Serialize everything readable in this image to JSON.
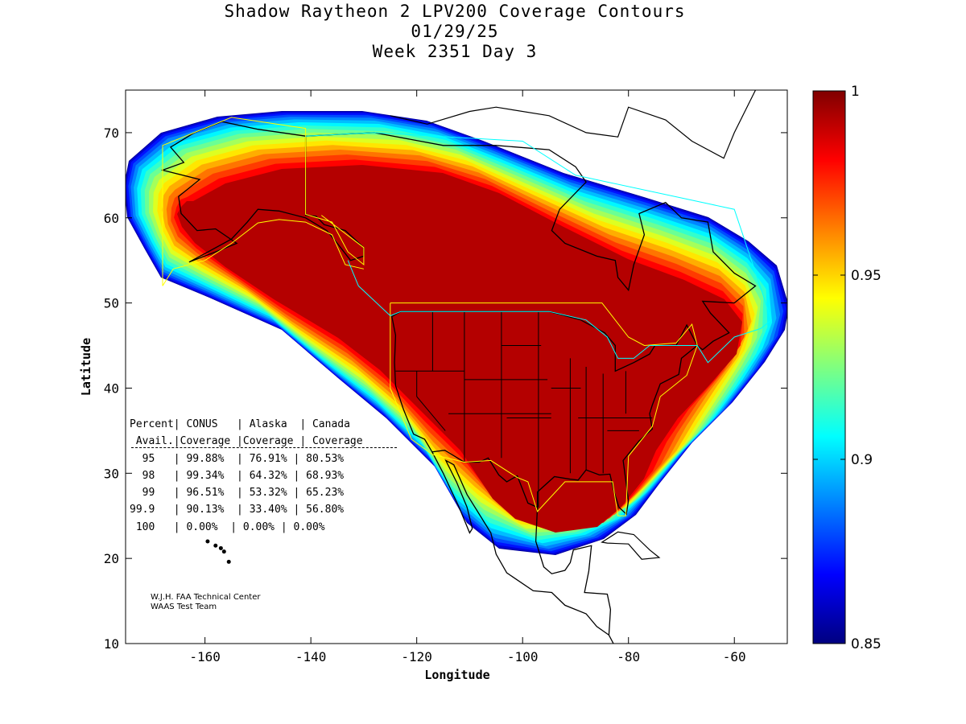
{
  "title": {
    "line1": "Shadow Raytheon 2 LPV200 Coverage Contours",
    "line2": "01/29/25",
    "line3": "Week 2351 Day 3"
  },
  "axes": {
    "xlabel": "Longitude",
    "ylabel": "Latitude",
    "xlim": [
      -175,
      -50
    ],
    "ylim": [
      10,
      75
    ],
    "xticks": [
      "-160",
      "-140",
      "-120",
      "-100",
      "-80",
      "-60"
    ],
    "xtick_values": [
      -160,
      -140,
      -120,
      -100,
      -80,
      -60
    ],
    "yticks": [
      "10",
      "20",
      "30",
      "40",
      "50",
      "60",
      "70"
    ],
    "ytick_values": [
      10,
      20,
      30,
      40,
      50,
      60,
      70
    ]
  },
  "colorbar": {
    "ticks": [
      "1",
      "0.95",
      "0.9",
      "0.85"
    ],
    "tick_values": [
      1,
      0.95,
      0.9,
      0.85
    ],
    "range": [
      0.85,
      1
    ]
  },
  "table": {
    "header1": "Percent| CONUS   | Alaska  | Canada",
    "header2": " Avail.|Coverage |Coverage | Coverage",
    "separator": "------------------------------------",
    "rows": [
      "  95   | 99.88%  | 76.91% | 80.53%",
      "  98   | 99.34%  | 64.32% | 68.93%",
      "  99   | 96.51%  | 53.32% | 65.23%",
      "99.9   | 90.13%  | 33.40% | 56.80%",
      " 100   | 0.00%  | 0.00% | 0.00%"
    ]
  },
  "credit": {
    "line1": "W.J.H. FAA Technical Center",
    "line2": "WAAS Test Team"
  },
  "colors": {
    "core": "#b40000",
    "conus_boundary": "#ffff00",
    "canada_boundary": "#00ffff"
  }
}
